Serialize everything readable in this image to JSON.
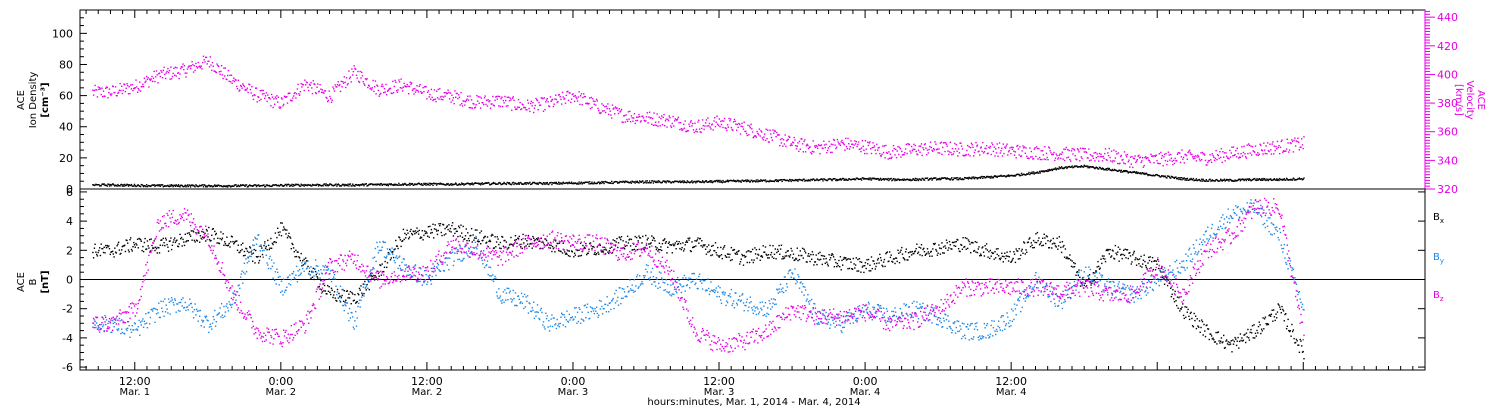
{
  "chart_data": [
    {
      "type": "scatter",
      "panel": "top",
      "ylabel_left": [
        "ACE",
        "Ion Density",
        "[cm⁻³]"
      ],
      "ylabel_right": [
        "ACE",
        "Velocity",
        "[km/s]"
      ],
      "ylim_left": [
        0,
        115
      ],
      "yticks_left": [
        "0",
        "20",
        "40",
        "60",
        "80",
        "100"
      ],
      "ylim_right": [
        320,
        445
      ],
      "yticks_right": [
        "320",
        "340",
        "360",
        "380",
        "400",
        "420",
        "440"
      ],
      "series": [
        {
          "axis": "right",
          "color": "#e600e6",
          "x": [
            -2,
            0,
            2,
            4,
            6,
            8,
            10,
            12,
            14,
            16,
            18,
            20,
            22,
            24,
            26,
            28,
            30,
            32,
            34,
            36,
            38,
            40,
            42,
            44,
            46,
            48,
            50,
            52,
            54,
            56,
            58,
            60,
            62,
            64,
            66,
            68,
            70,
            72,
            74,
            76,
            78,
            80,
            82,
            84,
            86,
            88,
            90,
            92,
            94,
            96
          ],
          "y": [
            388,
            392,
            400,
            403,
            410,
            396,
            386,
            380,
            394,
            385,
            402,
            390,
            393,
            387,
            385,
            381,
            382,
            378,
            380,
            386,
            378,
            372,
            370,
            368,
            364,
            367,
            363,
            358,
            352,
            349,
            352,
            350,
            346,
            348,
            349,
            348,
            349,
            347,
            346,
            345,
            344,
            344,
            340,
            341,
            343,
            342,
            345,
            348,
            350,
            352
          ]
        },
        {
          "axis": "left",
          "color": "#000000",
          "x": [
            -2,
            2,
            6,
            10,
            14,
            18,
            22,
            26,
            30,
            34,
            38,
            42,
            46,
            50,
            54,
            58,
            60,
            62,
            64,
            66,
            68,
            70,
            72,
            74,
            76,
            78,
            80,
            82,
            84,
            86,
            88,
            90,
            92,
            94,
            96
          ],
          "y": [
            3,
            2.5,
            2.5,
            2.5,
            3,
            3,
            3.5,
            3.5,
            4,
            4,
            4.5,
            5,
            5,
            5.5,
            6,
            6.5,
            7,
            6.5,
            6.5,
            7,
            7,
            8,
            9,
            11,
            14,
            15,
            13,
            11,
            9,
            7,
            6,
            6,
            6.5,
            6.5,
            7
          ]
        }
      ]
    },
    {
      "type": "scatter",
      "panel": "bottom",
      "ylabel": [
        "ACE",
        "B",
        "[nT]"
      ],
      "ylim": [
        -6.2,
        6.2
      ],
      "yticks": [
        "-6",
        "-4",
        "-2",
        "0",
        "2",
        "4",
        "6"
      ],
      "legend": [
        "Bx",
        "By",
        "Bz"
      ],
      "series": [
        {
          "name": "Bx",
          "color": "#000000",
          "x": [
            -2,
            0,
            2,
            4,
            6,
            8,
            10,
            12,
            14,
            16,
            18,
            20,
            22,
            24,
            26,
            28,
            30,
            32,
            34,
            36,
            38,
            40,
            42,
            44,
            46,
            48,
            50,
            52,
            54,
            56,
            58,
            60,
            62,
            64,
            66,
            68,
            70,
            72,
            74,
            76,
            78,
            80,
            82,
            84,
            86,
            88,
            90,
            92,
            94,
            96
          ],
          "y": [
            2,
            2.5,
            2.3,
            2.8,
            3.2,
            2.5,
            1.5,
            3.5,
            1,
            -1,
            -1.2,
            0.5,
            3,
            3.3,
            3.5,
            3,
            2.5,
            2.7,
            2.5,
            2,
            2.2,
            2.5,
            2.6,
            2.3,
            2.5,
            2,
            1.5,
            2,
            1.8,
            1.5,
            1.2,
            1,
            1.5,
            2,
            2.2,
            2.5,
            2,
            1.5,
            2.8,
            2.5,
            -0.5,
            2,
            1.5,
            1,
            -2,
            -3.5,
            -4.5,
            -3.5,
            -2,
            -5
          ]
        },
        {
          "name": "By",
          "color": "#1e88e5",
          "x": [
            -2,
            0,
            2,
            4,
            6,
            8,
            10,
            12,
            14,
            16,
            18,
            20,
            22,
            24,
            26,
            28,
            30,
            32,
            34,
            36,
            38,
            40,
            42,
            44,
            46,
            48,
            50,
            52,
            54,
            56,
            58,
            60,
            62,
            64,
            66,
            68,
            70,
            72,
            74,
            76,
            78,
            80,
            82,
            84,
            86,
            88,
            90,
            92,
            94,
            96
          ],
          "y": [
            -3,
            -3.5,
            -2,
            -1.5,
            -3,
            -1.5,
            3,
            -0.5,
            1,
            0.5,
            -3,
            2.5,
            1,
            0,
            1.5,
            2.5,
            -1,
            -1.5,
            -3,
            -2.5,
            -2,
            -1,
            0.5,
            -0.5,
            0,
            -1,
            -1.5,
            -2,
            0.5,
            -2.5,
            -3,
            -2,
            -2.5,
            -2,
            -2.5,
            -3.5,
            -3.5,
            -2.5,
            0,
            -1.5,
            0.5,
            -0.5,
            -1,
            0,
            1,
            3,
            4.5,
            5,
            3,
            -2
          ]
        },
        {
          "name": "Bz",
          "color": "#e600e6",
          "x": [
            -2,
            0,
            2,
            4,
            6,
            8,
            10,
            12,
            14,
            16,
            18,
            20,
            22,
            24,
            26,
            28,
            30,
            32,
            34,
            36,
            38,
            40,
            42,
            44,
            46,
            48,
            50,
            52,
            54,
            56,
            58,
            60,
            62,
            64,
            66,
            68,
            70,
            72,
            74,
            76,
            78,
            80,
            82,
            84,
            86,
            88,
            90,
            92,
            94,
            96
          ],
          "y": [
            -3,
            -2,
            4,
            4.5,
            3,
            -1,
            -3.5,
            -4,
            -3,
            1,
            1.5,
            0,
            0.5,
            0.5,
            2.5,
            2,
            1.5,
            2.5,
            2.8,
            2.6,
            2.5,
            1.8,
            2.2,
            0.5,
            -3.5,
            -4.5,
            -4.2,
            -3.5,
            -2,
            -2.5,
            -2.5,
            -2.2,
            -3,
            -2.8,
            -2,
            -0.5,
            -0.5,
            -0.5,
            -0.5,
            -0.8,
            -0.5,
            -1,
            -1,
            1,
            -1,
            2,
            3,
            5,
            5,
            -4
          ]
        }
      ]
    }
  ],
  "x_axis": {
    "xlim": [
      -4.5,
      106
    ],
    "ticks": [
      {
        "x": 0,
        "time": "12:00",
        "date": "Mar. 1"
      },
      {
        "x": 12,
        "time": "0:00",
        "date": "Mar. 2"
      },
      {
        "x": 24,
        "time": "12:00",
        "date": "Mar. 2"
      },
      {
        "x": 36,
        "time": "0:00",
        "date": "Mar. 3"
      },
      {
        "x": 48,
        "time": "12:00",
        "date": "Mar. 3"
      },
      {
        "x": 60,
        "time": "0:00",
        "date": "Mar. 4"
      },
      {
        "x": 72,
        "time": "12:00",
        "date": "Mar. 4"
      }
    ],
    "xlabel": "hours:minutes, Mar. 1, 2014 - Mar. 4, 2014"
  }
}
